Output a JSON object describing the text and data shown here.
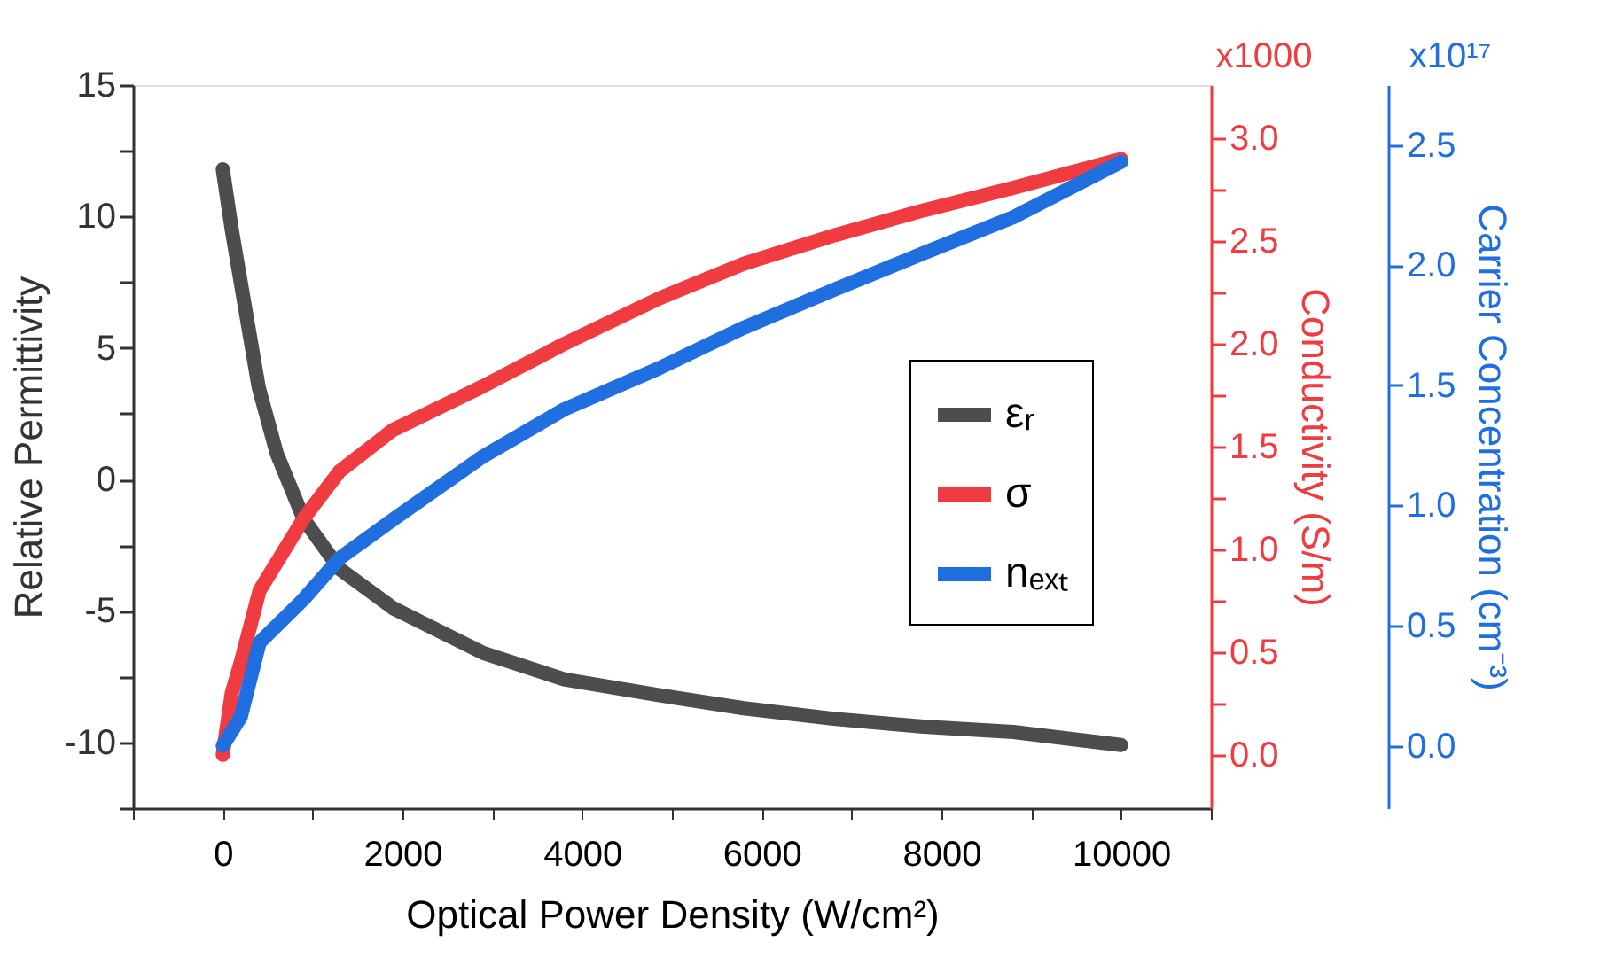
{
  "chart_data": {
    "type": "line",
    "xlabel": "Optical Power Density (W/cm²)",
    "ylabel": "Relative Permittivity",
    "y2label": "Conductivity (S/m)",
    "y3label": "Carrier Concentration (cm⁻³)",
    "annotations": [
      "x1000",
      "x10¹⁷"
    ],
    "xlim": [
      -1000,
      11000
    ],
    "xticks": [
      {
        "value": -1000,
        "label": null
      },
      0,
      {
        "value": 1000,
        "label": null
      },
      2000,
      {
        "value": 3000,
        "label": null
      },
      4000,
      {
        "value": 5000,
        "label": null
      },
      6000,
      {
        "value": 7000,
        "label": null
      },
      8000,
      {
        "value": 9000,
        "label": null
      },
      10000,
      {
        "value": 11000,
        "label": null
      }
    ],
    "ylim": [
      -12.5,
      15
    ],
    "yticks": [
      {
        "value": -12.5,
        "label": null
      },
      -10,
      {
        "value": -7.5,
        "label": null
      },
      -5,
      {
        "value": -2.5,
        "label": null
      },
      0,
      {
        "value": 2.5,
        "label": null
      },
      5,
      {
        "value": 7.5,
        "label": null
      },
      10,
      {
        "value": 12.5,
        "label": null
      },
      15
    ],
    "y2lim": [
      -0.26,
      3.26
    ],
    "y2ticks": [
      {
        "value": 0,
        "label": "0.0"
      },
      {
        "value": 0.25,
        "label": null
      },
      {
        "value": 0.5,
        "label": "0.5"
      },
      {
        "value": 0.75,
        "label": null
      },
      {
        "value": 1,
        "label": "1.0"
      },
      {
        "value": 1.25,
        "label": null
      },
      {
        "value": 1.5,
        "label": "1.5"
      },
      {
        "value": 1.75,
        "label": null
      },
      {
        "value": 2,
        "label": "2.0"
      },
      {
        "value": 2.25,
        "label": null
      },
      {
        "value": 2.5,
        "label": "2.5"
      },
      {
        "value": 2.75,
        "label": null
      },
      {
        "value": 3,
        "label": "3.0"
      }
    ],
    "y3lim": [
      -0.26,
      2.75
    ],
    "y3ticks": [
      {
        "value": 0,
        "label": "0.0"
      },
      {
        "value": 0.5,
        "label": "0.5"
      },
      {
        "value": 1,
        "label": "1.0"
      },
      {
        "value": 1.5,
        "label": "1.5"
      },
      {
        "value": 2,
        "label": "2.0"
      },
      {
        "value": 2.5,
        "label": "2.5"
      }
    ],
    "legend": "right",
    "grid": false,
    "marker": "none",
    "line_style": "solid",
    "series": [
      {
        "name": "εᵣ",
        "color": "#4d4d4d",
        "x": [
          0,
          100,
          200,
          400,
          600,
          900,
          1300,
          1900,
          2900,
          3800,
          4850,
          5800,
          6800,
          7800,
          8800,
          10000
        ],
        "values": [
          11.8,
          9.5,
          7.5,
          3.5,
          1.0,
          -1.5,
          -3.4,
          -4.9,
          -6.6,
          -7.6,
          -8.2,
          -8.7,
          -9.1,
          -9.4,
          -9.6,
          -10.1
        ]
      },
      {
        "name": "σ",
        "color": "#f03c41",
        "axis": "y2",
        "x": [
          0,
          100,
          200,
          410,
          900,
          1300,
          1890,
          2880,
          3800,
          4850,
          5800,
          6820,
          7800,
          8800,
          10000
        ],
        "values": [
          0.0,
          0.3,
          0.45,
          0.8,
          1.15,
          1.38,
          1.58,
          1.79,
          2.0,
          2.22,
          2.39,
          2.53,
          2.65,
          2.76,
          2.9
        ]
      },
      {
        "name": "nₑₓₜ",
        "color": "#1f6fe0",
        "axis": "y3",
        "x": [
          0,
          100,
          200,
          410,
          900,
          1300,
          1890,
          2880,
          3800,
          4850,
          5800,
          6820,
          7800,
          8800,
          10000
        ],
        "values": [
          0.0,
          0.06,
          0.12,
          0.43,
          0.61,
          0.78,
          0.94,
          1.2,
          1.4,
          1.57,
          1.74,
          1.9,
          2.05,
          2.2,
          2.43
        ]
      }
    ]
  }
}
